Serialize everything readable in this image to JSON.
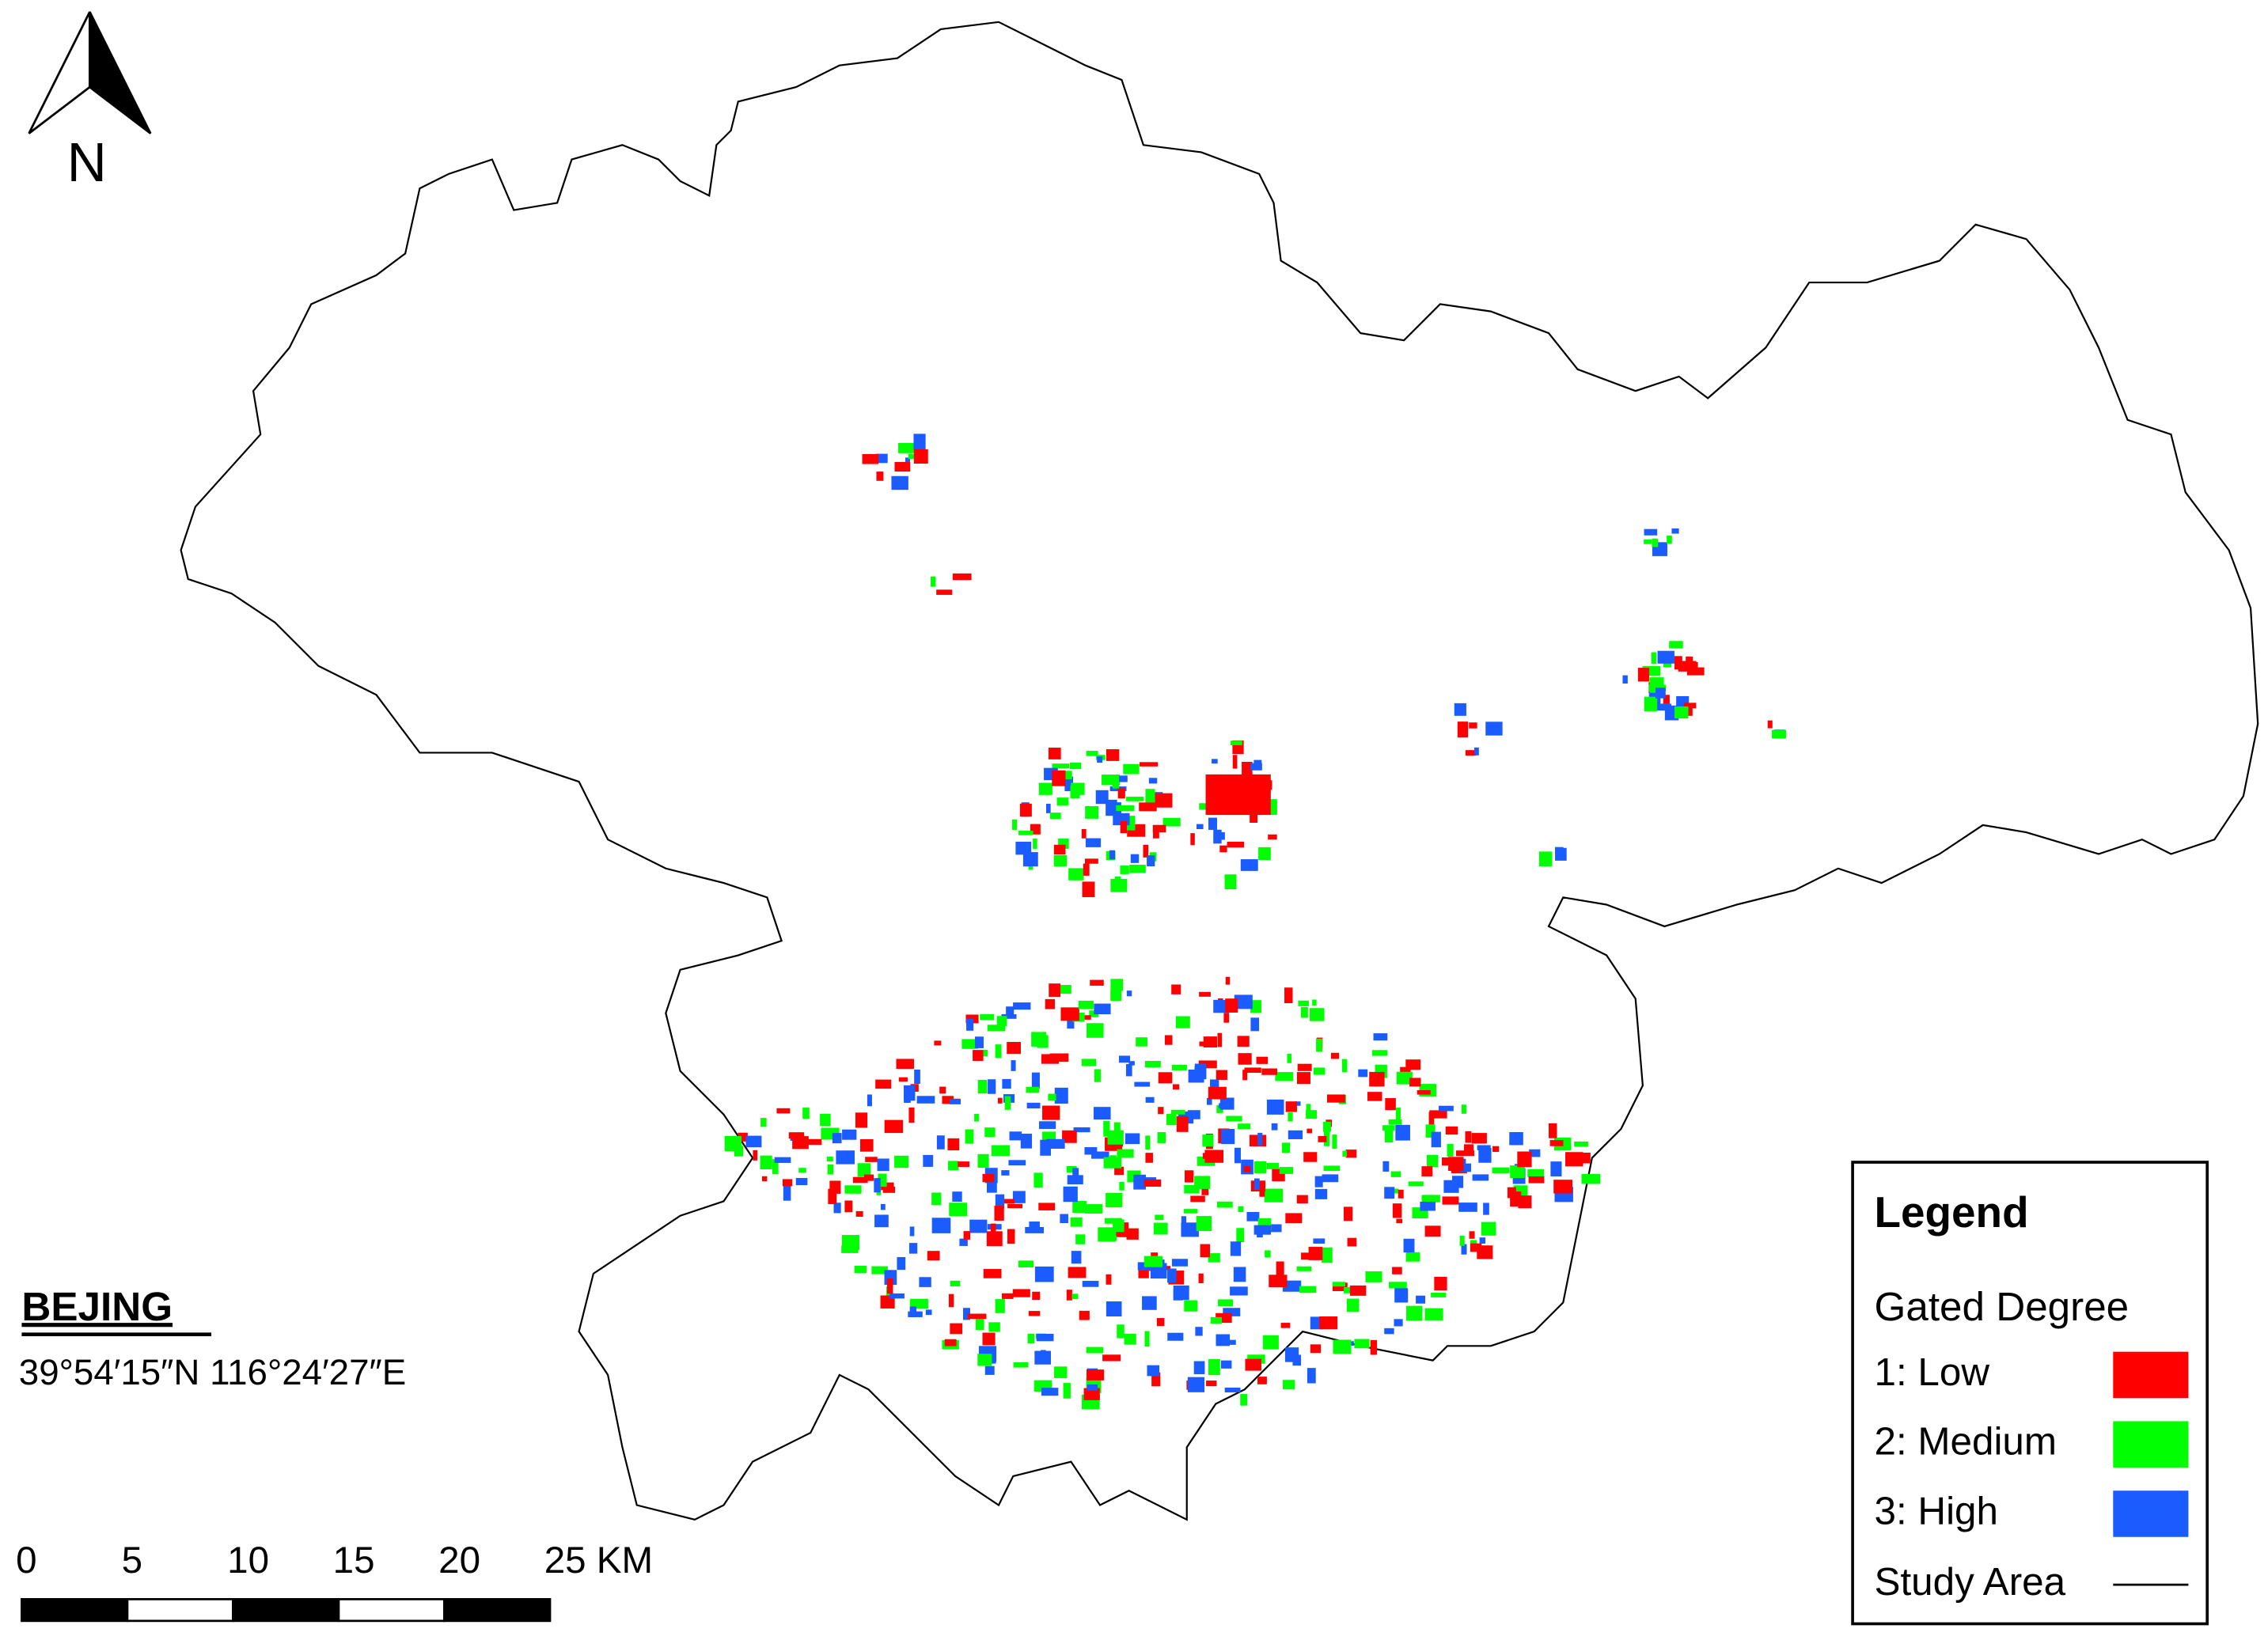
{
  "north_arrow": {
    "label": "N"
  },
  "place": {
    "name": "BEJING",
    "coordinates": "39°54′15″N 116°24′27″E"
  },
  "scale_bar": {
    "labels": [
      "0",
      "5",
      "10",
      "15",
      "20",
      "25 KM"
    ]
  },
  "legend": {
    "title": "Legend",
    "subtitle": "Gated Degree",
    "items": [
      {
        "label": "1: Low",
        "color": "#ff0000"
      },
      {
        "label": "2: Medium",
        "color": "#00ff00"
      },
      {
        "label": "3: High",
        "color": "#1a5cff"
      }
    ],
    "boundary": {
      "label": "Study Area"
    }
  }
}
